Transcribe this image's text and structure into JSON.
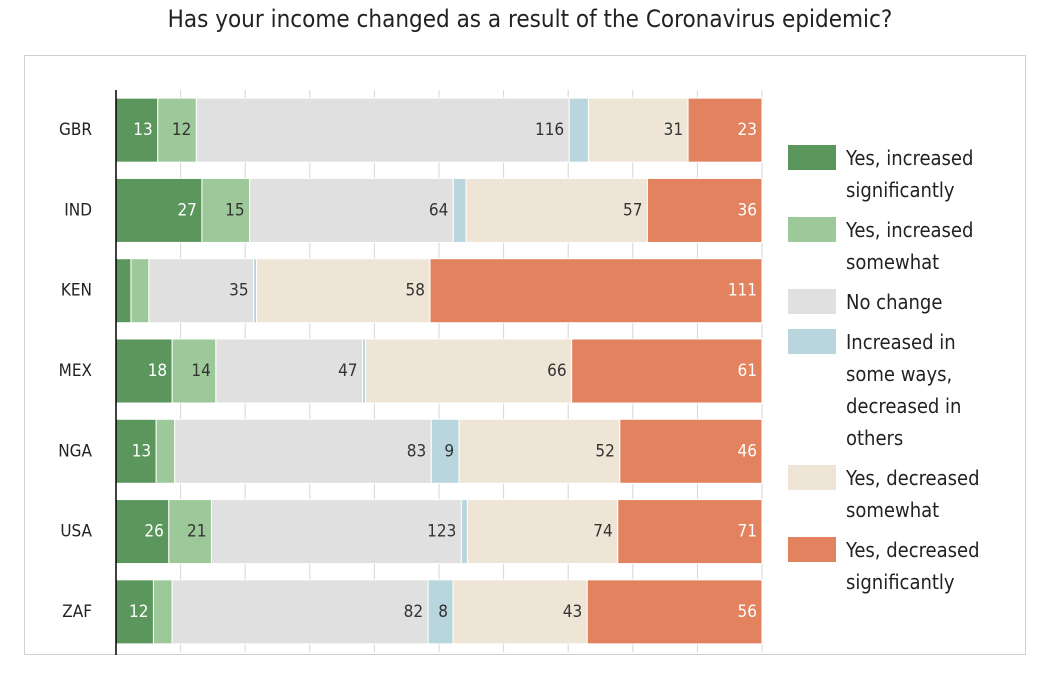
{
  "chart_data": {
    "type": "bar",
    "orientation": "horizontal",
    "stacked": "percent",
    "title": "Has your income changed as a result of the Coronavirus epidemic?",
    "categories": [
      "GBR",
      "IND",
      "KEN",
      "MEX",
      "NGA",
      "USA",
      "ZAF"
    ],
    "xlim": [
      0,
      100
    ],
    "xticks": [
      0,
      10,
      20,
      30,
      40,
      50,
      60,
      70,
      80,
      90,
      100
    ],
    "grid": true,
    "legend": "right",
    "series": [
      {
        "name": "Yes, increased significantly",
        "color": "#5b965c",
        "values": [
          13,
          27,
          5,
          18,
          13,
          26,
          12
        ]
      },
      {
        "name": "Yes, increased somewhat",
        "color": "#9dc99a",
        "values": [
          12,
          15,
          6,
          14,
          6,
          21,
          6
        ]
      },
      {
        "name": "No change",
        "color": "#e0e0e0",
        "values": [
          116,
          64,
          35,
          47,
          83,
          123,
          82
        ]
      },
      {
        "name": "Increased in some ways, decreased in others",
        "color": "#b9d5dd",
        "values": [
          6,
          4,
          1,
          1,
          9,
          3,
          8
        ]
      },
      {
        "name": "Yes, decreased somewhat",
        "color": "#efe5d7",
        "values": [
          31,
          57,
          58,
          66,
          52,
          74,
          43
        ]
      },
      {
        "name": "Yes, decreased significantly",
        "color": "#e2825e",
        "values": [
          23,
          36,
          111,
          61,
          46,
          71,
          56
        ]
      }
    ]
  }
}
